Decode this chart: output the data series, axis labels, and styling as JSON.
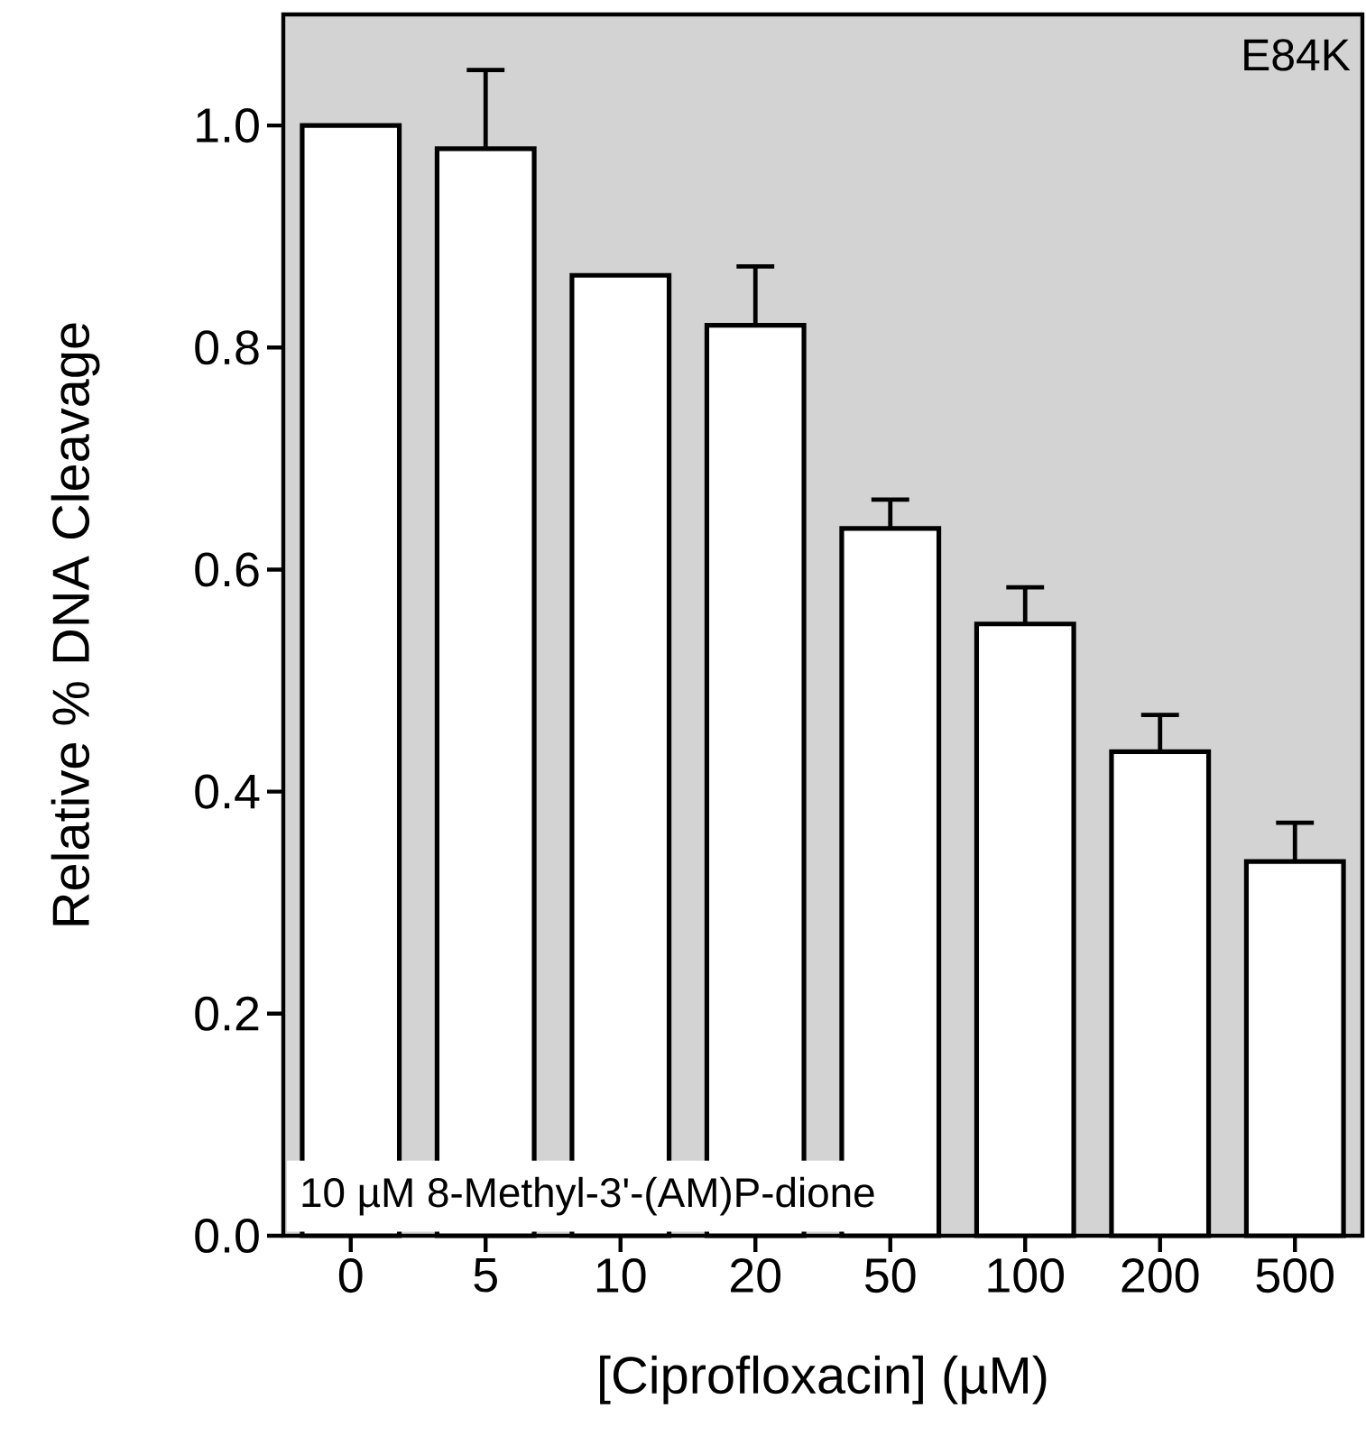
{
  "chart_data": {
    "type": "bar",
    "xlabel": "[Ciprofloxacin] (µM)",
    "ylabel": "Relative % DNA Cleavage",
    "categories": [
      "0",
      "5",
      "10",
      "20",
      "50",
      "100",
      "200",
      "500"
    ],
    "values": [
      1.0,
      0.979,
      0.865,
      0.82,
      0.637,
      0.551,
      0.436,
      0.337
    ],
    "errors": [
      null,
      [
        0.979,
        1.05
      ],
      null,
      [
        0.82,
        0.873
      ],
      [
        0.637,
        0.663
      ],
      [
        0.551,
        0.584
      ],
      [
        0.436,
        0.469
      ],
      [
        0.337,
        0.372
      ]
    ],
    "color": "#ffffff",
    "ylim": [
      0,
      1.1
    ],
    "yticks": [
      {
        "value": 0,
        "label": "0.0"
      },
      0.2,
      0.4,
      0.6,
      0.8,
      {
        "value": 1,
        "label": "1.0"
      }
    ],
    "annotations": [
      "E84K",
      "10 µM 8-Methyl-3'-(AM)P-dione"
    ],
    "grid": false
  }
}
